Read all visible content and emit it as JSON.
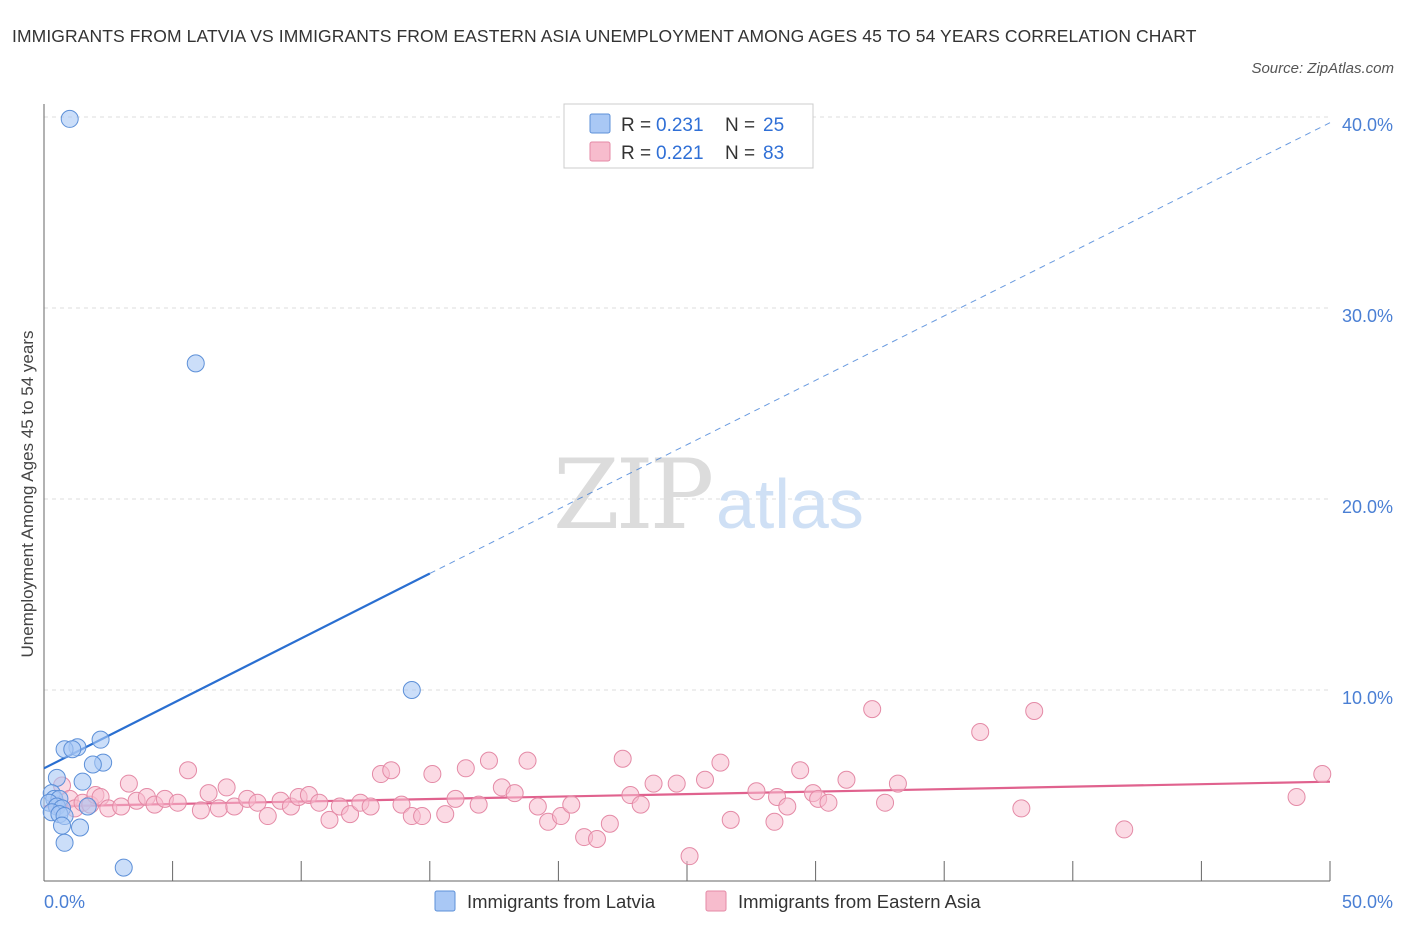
{
  "title": "IMMIGRANTS FROM LATVIA VS IMMIGRANTS FROM EASTERN ASIA UNEMPLOYMENT AMONG AGES 45 TO 54 YEARS CORRELATION CHART",
  "source": "Source: ZipAtlas.com",
  "watermark": {
    "zip": "ZIP",
    "atlas": "atlas"
  },
  "legend_top": [
    {
      "r_label": "R = ",
      "r_value": "0.231",
      "n_label": "N = ",
      "n_value": "25"
    },
    {
      "r_label": "R = ",
      "r_value": "0.221",
      "n_label": "N = ",
      "n_value": "83"
    }
  ],
  "colors": {
    "latvia_fill": "#a9c8f5",
    "latvia_stroke": "#5d90d8",
    "latvia_line": "#2a6fd1",
    "asia_fill": "#f7bccd",
    "asia_stroke": "#e48aa6",
    "asia_line": "#e0628e",
    "grid": "#dddddd",
    "tick_text": "#4a7fd4"
  },
  "chart_data": {
    "type": "scatter",
    "title": "IMMIGRANTS FROM LATVIA VS IMMIGRANTS FROM EASTERN ASIA UNEMPLOYMENT AMONG AGES 45 TO 54 YEARS CORRELATION CHART",
    "xlabel": "",
    "ylabel": "Unemployment Among Ages 45 to 54 years",
    "xlim": [
      0,
      50
    ],
    "ylim": [
      0,
      40
    ],
    "x_tick_labels": [
      "0.0%",
      "50.0%"
    ],
    "y_ticks": [
      10,
      20,
      30,
      40
    ],
    "y_tick_labels": [
      "10.0%",
      "20.0%",
      "30.0%",
      "40.0%"
    ],
    "grid": true,
    "legend_position": "bottom",
    "series": [
      {
        "name": "Immigrants from Latvia",
        "R": 0.231,
        "N": 25,
        "trend": {
          "x0": 0,
          "y0": 5.9,
          "x1_solid": 15,
          "y1_solid": 16.1,
          "x1": 50,
          "y1": 39.7
        },
        "points": [
          [
            1.0,
            39.9
          ],
          [
            5.9,
            27.1
          ],
          [
            14.3,
            10.0
          ],
          [
            2.2,
            7.4
          ],
          [
            1.3,
            7.0
          ],
          [
            0.8,
            6.9
          ],
          [
            1.1,
            6.9
          ],
          [
            2.3,
            6.2
          ],
          [
            1.9,
            6.1
          ],
          [
            0.5,
            5.4
          ],
          [
            1.5,
            5.2
          ],
          [
            0.3,
            4.6
          ],
          [
            0.4,
            4.3
          ],
          [
            0.6,
            4.3
          ],
          [
            0.2,
            4.1
          ],
          [
            0.5,
            3.9
          ],
          [
            1.7,
            3.9
          ],
          [
            0.7,
            3.8
          ],
          [
            0.3,
            3.6
          ],
          [
            0.6,
            3.5
          ],
          [
            0.8,
            3.4
          ],
          [
            0.7,
            2.9
          ],
          [
            1.4,
            2.8
          ],
          [
            0.8,
            2.0
          ],
          [
            3.1,
            0.7
          ]
        ]
      },
      {
        "name": "Immigrants from Eastern Asia",
        "R": 0.221,
        "N": 83,
        "trend": {
          "x0": 0,
          "y0": 3.9,
          "x1": 50,
          "y1": 5.2
        },
        "points": [
          [
            0.5,
            4.0
          ],
          [
            0.7,
            5.0
          ],
          [
            1.0,
            4.3
          ],
          [
            1.2,
            3.8
          ],
          [
            1.5,
            4.1
          ],
          [
            1.8,
            4.0
          ],
          [
            2.0,
            4.5
          ],
          [
            2.2,
            4.4
          ],
          [
            2.5,
            3.8
          ],
          [
            3.0,
            3.9
          ],
          [
            3.3,
            5.1
          ],
          [
            3.6,
            4.2
          ],
          [
            4.0,
            4.4
          ],
          [
            4.3,
            4.0
          ],
          [
            4.7,
            4.3
          ],
          [
            5.2,
            4.1
          ],
          [
            5.6,
            5.8
          ],
          [
            6.1,
            3.7
          ],
          [
            6.4,
            4.6
          ],
          [
            6.8,
            3.8
          ],
          [
            7.1,
            4.9
          ],
          [
            7.4,
            3.9
          ],
          [
            7.9,
            4.3
          ],
          [
            8.3,
            4.1
          ],
          [
            8.7,
            3.4
          ],
          [
            9.2,
            4.2
          ],
          [
            9.6,
            3.9
          ],
          [
            9.9,
            4.4
          ],
          [
            10.3,
            4.5
          ],
          [
            10.7,
            4.1
          ],
          [
            11.1,
            3.2
          ],
          [
            11.5,
            3.9
          ],
          [
            11.9,
            3.5
          ],
          [
            12.3,
            4.1
          ],
          [
            12.7,
            3.9
          ],
          [
            13.1,
            5.6
          ],
          [
            13.5,
            5.8
          ],
          [
            13.9,
            4.0
          ],
          [
            14.3,
            3.4
          ],
          [
            14.7,
            3.4
          ],
          [
            15.1,
            5.6
          ],
          [
            15.6,
            3.5
          ],
          [
            16.0,
            4.3
          ],
          [
            16.4,
            5.9
          ],
          [
            16.9,
            4.0
          ],
          [
            17.3,
            6.3
          ],
          [
            17.8,
            4.9
          ],
          [
            18.3,
            4.6
          ],
          [
            18.8,
            6.3
          ],
          [
            19.2,
            3.9
          ],
          [
            19.6,
            3.1
          ],
          [
            20.1,
            3.4
          ],
          [
            20.5,
            4.0
          ],
          [
            21.0,
            2.3
          ],
          [
            21.5,
            2.2
          ],
          [
            22.0,
            3.0
          ],
          [
            22.5,
            6.4
          ],
          [
            22.8,
            4.5
          ],
          [
            23.2,
            4.0
          ],
          [
            23.7,
            5.1
          ],
          [
            24.6,
            5.1
          ],
          [
            25.1,
            1.3
          ],
          [
            25.7,
            5.3
          ],
          [
            26.3,
            6.2
          ],
          [
            26.7,
            3.2
          ],
          [
            27.7,
            4.7
          ],
          [
            28.4,
            3.1
          ],
          [
            28.5,
            4.4
          ],
          [
            28.9,
            3.9
          ],
          [
            29.4,
            5.8
          ],
          [
            29.9,
            4.6
          ],
          [
            30.1,
            4.3
          ],
          [
            30.5,
            4.1
          ],
          [
            31.2,
            5.3
          ],
          [
            32.2,
            9.0
          ],
          [
            32.7,
            4.1
          ],
          [
            33.2,
            5.1
          ],
          [
            36.4,
            7.8
          ],
          [
            38.5,
            8.9
          ],
          [
            38.0,
            3.8
          ],
          [
            42.0,
            2.7
          ],
          [
            48.7,
            4.4
          ],
          [
            49.7,
            5.6
          ]
        ]
      }
    ]
  }
}
